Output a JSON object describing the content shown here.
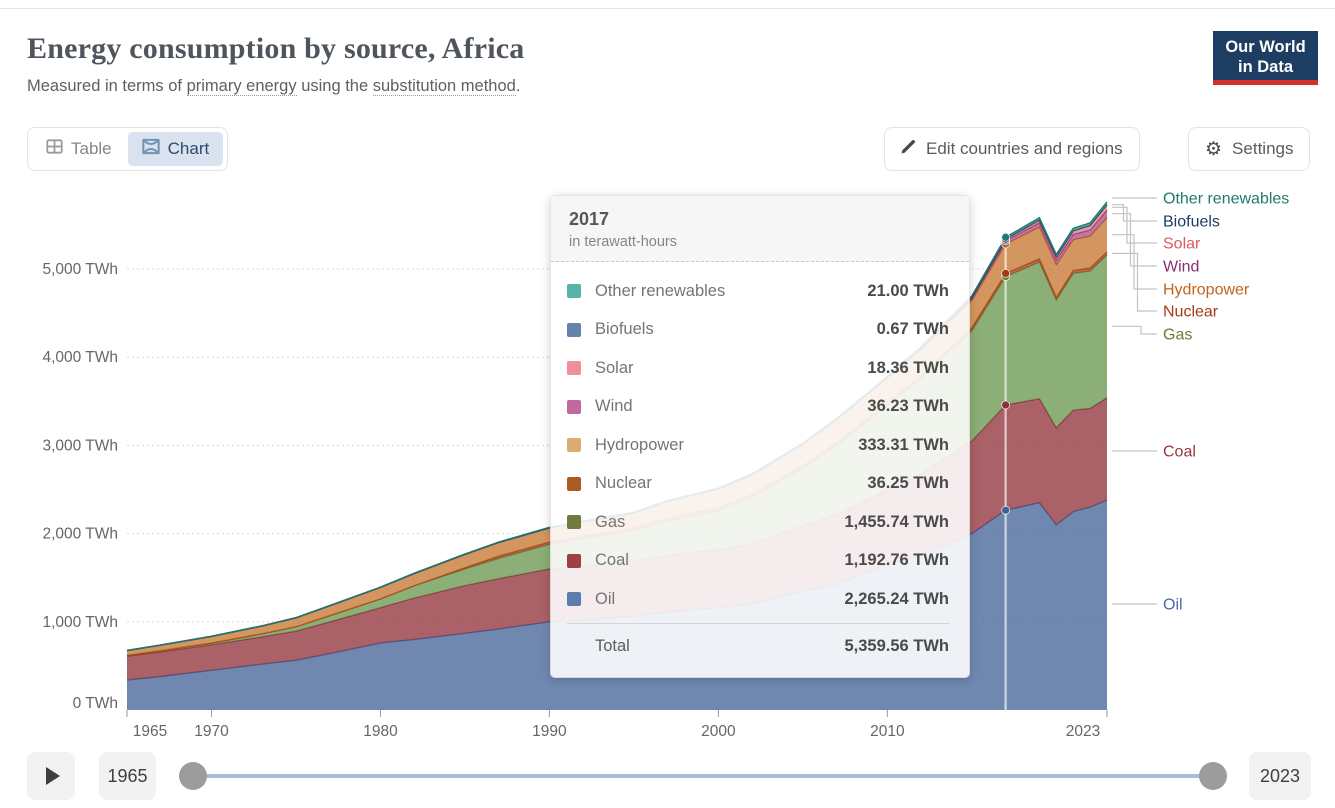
{
  "header": {
    "title": "Energy consumption by source, Africa",
    "subtitle": {
      "part1": "Measured in terms of ",
      "link1": "primary energy",
      "part2": " using the ",
      "link2": "substitution method",
      "part3": "."
    },
    "logo": {
      "line1": "Our World",
      "line2": "in Data",
      "bg": "#1d3d63",
      "accent": "#d4302a"
    }
  },
  "toolbar": {
    "tab_table": "Table",
    "tab_chart": "Chart",
    "active_tab": "Chart",
    "edit_button": "Edit countries and regions",
    "settings_button": "Settings"
  },
  "timeline": {
    "start_label": "1965",
    "end_label": "2023"
  },
  "tooltip": {
    "year": "2017",
    "unit_note": "in terawatt-hours",
    "rows": [
      {
        "label": "Other renewables",
        "value": "21.00 TWh",
        "swatch": "#56b3a6"
      },
      {
        "label": "Biofuels",
        "value": "0.67 TWh",
        "swatch": "#6484ab"
      },
      {
        "label": "Solar",
        "value": "18.36 TWh",
        "swatch": "#ee8f9a"
      },
      {
        "label": "Wind",
        "value": "36.23 TWh",
        "swatch": "#c2689e"
      },
      {
        "label": "Hydropower",
        "value": "333.31 TWh",
        "swatch": "#dcab72"
      },
      {
        "label": "Nuclear",
        "value": "36.25 TWh",
        "swatch": "#ad5b25"
      },
      {
        "label": "Gas",
        "value": "1,455.74 TWh",
        "swatch": "#727a40"
      },
      {
        "label": "Coal",
        "value": "1,192.76 TWh",
        "swatch": "#9e4046"
      },
      {
        "label": "Oil",
        "value": "2,265.24 TWh",
        "swatch": "#5c7cab"
      }
    ],
    "total_label": "Total",
    "total_value": "5,359.56 TWh"
  },
  "chart_data": {
    "type": "area",
    "stacked": true,
    "title": "Energy consumption by source, Africa",
    "unit": "TWh",
    "grid": true,
    "legend_position": "right",
    "xlim": [
      1965,
      2023
    ],
    "ylim": [
      0,
      5800
    ],
    "xticks": [
      1965,
      1970,
      1980,
      1990,
      2000,
      2010,
      2023
    ],
    "yticks": [
      0,
      1000,
      2000,
      3000,
      4000,
      5000
    ],
    "ytick_labels": [
      "0 TWh",
      "1,000 TWh",
      "2,000 TWh",
      "3,000 TWh",
      "4,000 TWh",
      "5,000 TWh"
    ],
    "highlight_year": 2017,
    "x": [
      1965,
      1967,
      1970,
      1973,
      1975,
      1977,
      1980,
      1982,
      1985,
      1987,
      1990,
      1992,
      1995,
      1997,
      2000,
      2002,
      2005,
      2007,
      2010,
      2012,
      2015,
      2017,
      2019,
      2020,
      2021,
      2022,
      2023
    ],
    "series": [
      {
        "name": "Oil",
        "color": "#4c6a9c",
        "stroke": "#3f5f94",
        "values": [
          340,
          380,
          450,
          520,
          565,
          640,
          760,
          800,
          870,
          920,
          1000,
          1015,
          1065,
          1110,
          1160,
          1200,
          1350,
          1430,
          1650,
          1750,
          2000,
          2265.24,
          2350,
          2100,
          2250,
          2300,
          2380
        ]
      },
      {
        "name": "Coal",
        "color": "#963a42",
        "stroke": "#8c3038",
        "values": [
          270,
          280,
          290,
          310,
          330,
          360,
          400,
          470,
          540,
          570,
          600,
          615,
          630,
          645,
          660,
          690,
          740,
          790,
          850,
          930,
          1050,
          1192.76,
          1180,
          1100,
          1150,
          1120,
          1160
        ]
      },
      {
        "name": "Gas",
        "color": "#6f9a55",
        "stroke": "#5d8440",
        "values": [
          10,
          14,
          20,
          35,
          50,
          70,
          100,
          140,
          190,
          230,
          280,
          310,
          340,
          390,
          440,
          520,
          650,
          780,
          950,
          1080,
          1250,
          1455.74,
          1550,
          1450,
          1550,
          1560,
          1620
        ]
      },
      {
        "name": "Nuclear",
        "color": "#b5491f",
        "stroke": "#a03c10",
        "values": [
          0,
          0,
          0,
          0,
          0,
          0,
          0,
          0,
          15,
          25,
          25,
          28,
          30,
          32,
          35,
          33,
          32,
          30,
          33,
          33,
          33,
          36.25,
          36,
          30,
          33,
          33,
          34
        ]
      },
      {
        "name": "Hydropower",
        "color": "#c87c38",
        "stroke": "#b5621c",
        "values": [
          55,
          62,
          75,
          88,
          100,
          112,
          130,
          138,
          150,
          155,
          160,
          165,
          170,
          190,
          210,
          225,
          240,
          260,
          280,
          295,
          310,
          333.31,
          360,
          370,
          350,
          360,
          390
        ]
      },
      {
        "name": "Wind",
        "color": "#b0538d",
        "stroke": "#95306f",
        "values": [
          0,
          0,
          0,
          0,
          0,
          0,
          0,
          0,
          0,
          0,
          0.3,
          0.5,
          0.8,
          1,
          1.5,
          2,
          3,
          4,
          5,
          12,
          25,
          36.23,
          50,
          55,
          60,
          70,
          85
        ]
      },
      {
        "name": "Solar",
        "color": "#e5838d",
        "stroke": "#d6565e",
        "values": [
          0,
          0,
          0,
          0,
          0,
          0,
          0,
          0,
          0,
          0,
          0.1,
          0.2,
          0.3,
          0.5,
          0.7,
          1,
          1.2,
          1.5,
          2,
          5,
          9,
          18.36,
          30,
          35,
          40,
          50,
          60
        ]
      },
      {
        "name": "Biofuels",
        "color": "#2c4b70",
        "stroke": "#1d3d63",
        "values": [
          0,
          0,
          0,
          0,
          0,
          0,
          0,
          0,
          0,
          0,
          0,
          0,
          0,
          0,
          0.1,
          0.2,
          0.3,
          0.4,
          0.4,
          0.5,
          0.6,
          0.67,
          0.8,
          0.8,
          0.9,
          1,
          1
        ]
      },
      {
        "name": "Other renewables",
        "color": "#3aa08f",
        "stroke": "#1f7a6e",
        "values": [
          1,
          1.2,
          1.5,
          2,
          2.3,
          2.6,
          3,
          3.5,
          4,
          5,
          6,
          6.5,
          7,
          7.5,
          8,
          9,
          10,
          11,
          12,
          14,
          16,
          21,
          24,
          25,
          27,
          29,
          30
        ]
      }
    ],
    "legend": [
      {
        "label": "Other renewables",
        "color": "#1f7a6e"
      },
      {
        "label": "Biofuels",
        "color": "#1d3d63"
      },
      {
        "label": "Solar",
        "color": "#dd5a5f"
      },
      {
        "label": "Wind",
        "color": "#8c2d74"
      },
      {
        "label": "Hydropower",
        "color": "#c0631e"
      },
      {
        "label": "Nuclear",
        "color": "#a33b16"
      },
      {
        "label": "Gas",
        "color": "#667d35"
      },
      {
        "label": "Coal",
        "color": "#99353f"
      },
      {
        "label": "Oil",
        "color": "#4c6a9c"
      }
    ]
  }
}
